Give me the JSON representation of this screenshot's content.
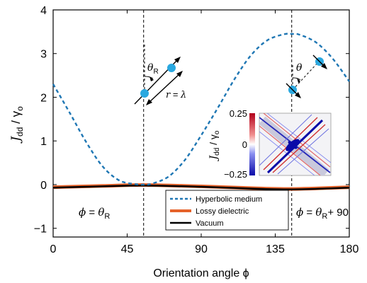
{
  "chart_data": {
    "type": "line",
    "xlabel": "Orientation angle ϕ",
    "ylabel": "J_dd / γ_o",
    "xlim": [
      0,
      180
    ],
    "ylim": [
      -1.2,
      4
    ],
    "xticks": [
      "0",
      "45",
      "90",
      "135",
      "180"
    ],
    "yticks": [
      "−1",
      "0",
      "1",
      "2",
      "3",
      "4"
    ],
    "series": [
      {
        "name": "Hyperbolic medium",
        "color": "#1f77b4",
        "style": "dashed",
        "x": [
          0,
          10,
          20,
          30,
          40,
          50,
          55,
          60,
          70,
          80,
          90,
          100,
          110,
          120,
          130,
          140,
          145,
          150,
          160,
          170,
          180
        ],
        "y": [
          2.3,
          1.65,
          0.98,
          0.42,
          0.1,
          0.01,
          0.0,
          0.02,
          0.18,
          0.56,
          1.13,
          1.75,
          2.4,
          2.95,
          3.3,
          3.44,
          3.45,
          3.43,
          3.25,
          2.88,
          2.36
        ]
      },
      {
        "name": "Lossy dielectric",
        "color": "#e5622a",
        "style": "solid",
        "x": [
          0,
          30,
          55,
          90,
          120,
          145,
          180
        ],
        "y": [
          -0.06,
          -0.03,
          -0.01,
          -0.04,
          -0.08,
          -0.1,
          -0.06
        ]
      },
      {
        "name": "Vacuum",
        "color": "#000000",
        "style": "solid",
        "x": [
          0,
          30,
          55,
          90,
          120,
          145,
          180
        ],
        "y": [
          -0.07,
          -0.04,
          -0.02,
          -0.05,
          -0.09,
          -0.11,
          -0.07
        ]
      }
    ],
    "legend_placement": "bottom-center",
    "vertical_markers": [
      {
        "x": 55,
        "label_left": "ϕ = θ",
        "label_sub": "R",
        "label_right": ""
      },
      {
        "x": 145,
        "label_left": "ϕ = θ",
        "label_sub": "R",
        "label_right": "+ 90"
      }
    ],
    "annotations": {
      "theta_R": "θ",
      "theta_R_sub": "R",
      "r_eq": "r = λ",
      "theta": "θ"
    },
    "inset": {
      "type": "heatmap",
      "ylabel": "J_dd / γ_o",
      "colorbar_ticks": [
        "0.25",
        "0",
        "−0.25"
      ]
    },
    "colors": {
      "hyperbolic": "#1f77b4",
      "lossy": "#e5622a",
      "vacuum": "#000000",
      "dipole": "#29a8e0"
    }
  }
}
